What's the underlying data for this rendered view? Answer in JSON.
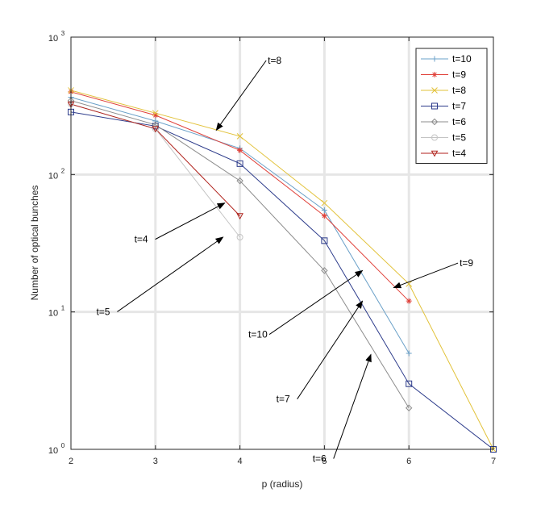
{
  "chart_data": {
    "type": "line",
    "xlabel": "p (radius)",
    "ylabel": "Number of optical bunches",
    "xlim": [
      2,
      7
    ],
    "ylim": [
      1,
      1000
    ],
    "yscale": "log",
    "grid": true,
    "legend_position": "top-right",
    "x_ticks": [
      "2",
      "3",
      "4",
      "5",
      "6",
      "7"
    ],
    "y_ticks": [
      {
        "base": "10",
        "exp": "0",
        "value": 1
      },
      {
        "base": "10",
        "exp": "1",
        "value": 10
      },
      {
        "base": "10",
        "exp": "2",
        "value": 100
      },
      {
        "base": "10",
        "exp": "3",
        "value": 1000
      }
    ],
    "series": [
      {
        "name": "t=10",
        "color": "#6aa0c8",
        "marker": "plus",
        "points": [
          [
            2,
            365
          ],
          [
            3,
            245
          ],
          [
            4,
            155
          ],
          [
            5,
            55
          ],
          [
            6,
            5
          ]
        ]
      },
      {
        "name": "t=9",
        "color": "#e0413a",
        "marker": "asterisk",
        "points": [
          [
            2,
            400
          ],
          [
            3,
            270
          ],
          [
            4,
            150
          ],
          [
            5,
            50
          ],
          [
            6,
            12
          ]
        ]
      },
      {
        "name": "t=8",
        "color": "#e2c23a",
        "marker": "x",
        "points": [
          [
            2,
            410
          ],
          [
            3,
            280
          ],
          [
            4,
            190
          ],
          [
            5,
            62
          ],
          [
            6,
            16
          ],
          [
            7,
            1
          ]
        ]
      },
      {
        "name": "t=7",
        "color": "#2b3a8a",
        "marker": "square",
        "points": [
          [
            2,
            285
          ],
          [
            3,
            225
          ],
          [
            4,
            120
          ],
          [
            5,
            33
          ],
          [
            6,
            3
          ],
          [
            7,
            1
          ]
        ]
      },
      {
        "name": "t=6",
        "color": "#8c8c8c",
        "marker": "diamond",
        "points": [
          [
            2,
            345
          ],
          [
            3,
            230
          ],
          [
            4,
            90
          ],
          [
            5,
            20
          ],
          [
            6,
            2
          ]
        ]
      },
      {
        "name": "t=5",
        "color": "#c4c4c4",
        "marker": "circle",
        "points": [
          [
            2,
            325
          ],
          [
            3,
            215
          ],
          [
            4,
            35
          ]
        ]
      },
      {
        "name": "t=4",
        "color": "#b0221c",
        "marker": "triangle-down",
        "points": [
          [
            2,
            325
          ],
          [
            3,
            215
          ],
          [
            4,
            50
          ]
        ]
      }
    ],
    "annotations": [
      {
        "text": "t=8",
        "text_at": [
          4.33,
          640
        ],
        "arrow_to": [
          3.72,
          210
        ]
      },
      {
        "text": "t=4",
        "text_at": [
          2.75,
          32
        ],
        "arrow_to": [
          3.82,
          62
        ]
      },
      {
        "text": "t=5",
        "text_at": [
          2.3,
          9.5
        ],
        "arrow_to": [
          3.8,
          35
        ]
      },
      {
        "text": "t=10",
        "text_at": [
          4.1,
          6.5
        ],
        "arrow_to": [
          5.45,
          20
        ]
      },
      {
        "text": "t=9",
        "text_at": [
          6.6,
          21.5
        ],
        "arrow_to": [
          5.82,
          15
        ]
      },
      {
        "text": "t=7",
        "text_at": [
          4.43,
          2.2
        ],
        "arrow_to": [
          5.45,
          12
        ]
      },
      {
        "text": "t=6",
        "text_at": [
          4.86,
          0.81
        ],
        "arrow_to": [
          5.55,
          4.9
        ]
      }
    ]
  }
}
